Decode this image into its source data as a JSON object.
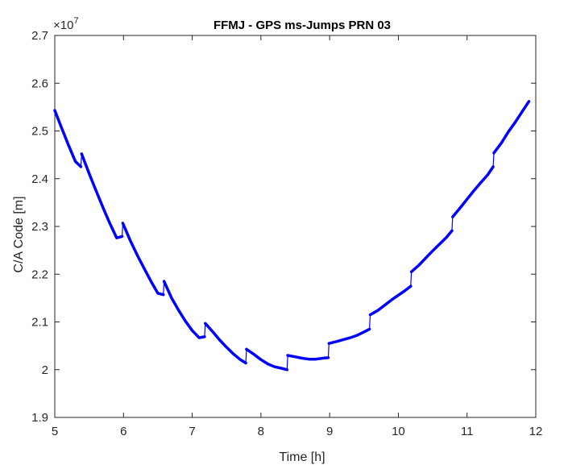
{
  "chart_data": {
    "type": "line",
    "title": "FFMJ - GPS ms-Jumps PRN 03",
    "xlabel": "Time [h]",
    "ylabel": "C/A Code [m]",
    "xlim": [
      5,
      12
    ],
    "ylim": [
      1.9,
      2.7
    ],
    "y_exponent_label": "×10",
    "y_exponent_power": "7",
    "x_ticks": [
      "5",
      "6",
      "7",
      "8",
      "9",
      "10",
      "11",
      "12"
    ],
    "y_ticks": [
      "1.9",
      "2",
      "2.1",
      "2.2",
      "2.3",
      "2.4",
      "2.5",
      "2.6",
      "2.7"
    ],
    "grid": false,
    "line_color": "#0000ff",
    "series": [
      {
        "segments": [
          [
            [
              5.0,
              2.543
            ],
            [
              5.1,
              2.506
            ],
            [
              5.2,
              2.47
            ],
            [
              5.3,
              2.436
            ],
            [
              5.38,
              2.425
            ]
          ],
          [
            [
              5.39,
              2.452
            ],
            [
              5.5,
              2.411
            ],
            [
              5.6,
              2.375
            ],
            [
              5.7,
              2.34
            ],
            [
              5.8,
              2.307
            ],
            [
              5.9,
              2.276
            ],
            [
              5.98,
              2.279
            ]
          ],
          [
            [
              5.99,
              2.307
            ],
            [
              6.1,
              2.27
            ],
            [
              6.2,
              2.24
            ],
            [
              6.3,
              2.212
            ],
            [
              6.4,
              2.185
            ],
            [
              6.5,
              2.16
            ],
            [
              6.58,
              2.157
            ]
          ],
          [
            [
              6.59,
              2.185
            ],
            [
              6.7,
              2.15
            ],
            [
              6.8,
              2.125
            ],
            [
              6.9,
              2.102
            ],
            [
              7.0,
              2.082
            ],
            [
              7.1,
              2.067
            ],
            [
              7.18,
              2.069
            ]
          ],
          [
            [
              7.19,
              2.097
            ],
            [
              7.3,
              2.079
            ],
            [
              7.4,
              2.062
            ],
            [
              7.5,
              2.047
            ],
            [
              7.6,
              2.033
            ],
            [
              7.7,
              2.021
            ],
            [
              7.78,
              2.014
            ]
          ],
          [
            [
              7.79,
              2.043
            ],
            [
              7.9,
              2.032
            ],
            [
              8.0,
              2.021
            ],
            [
              8.1,
              2.012
            ],
            [
              8.2,
              2.006
            ],
            [
              8.3,
              2.003
            ],
            [
              8.38,
              2.0
            ]
          ],
          [
            [
              8.39,
              2.03
            ],
            [
              8.5,
              2.027
            ],
            [
              8.6,
              2.024
            ],
            [
              8.7,
              2.022
            ],
            [
              8.8,
              2.022
            ],
            [
              8.9,
              2.024
            ],
            [
              8.98,
              2.025
            ]
          ],
          [
            [
              8.99,
              2.055
            ],
            [
              9.1,
              2.059
            ],
            [
              9.2,
              2.063
            ],
            [
              9.3,
              2.067
            ],
            [
              9.4,
              2.072
            ],
            [
              9.5,
              2.079
            ],
            [
              9.58,
              2.085
            ]
          ],
          [
            [
              9.59,
              2.115
            ],
            [
              9.7,
              2.124
            ],
            [
              9.8,
              2.135
            ],
            [
              9.9,
              2.146
            ],
            [
              10.0,
              2.156
            ],
            [
              10.1,
              2.166
            ],
            [
              10.18,
              2.175
            ]
          ],
          [
            [
              10.19,
              2.205
            ],
            [
              10.3,
              2.219
            ],
            [
              10.4,
              2.234
            ],
            [
              10.5,
              2.249
            ],
            [
              10.6,
              2.263
            ],
            [
              10.7,
              2.277
            ],
            [
              10.78,
              2.291
            ]
          ],
          [
            [
              10.79,
              2.32
            ],
            [
              10.9,
              2.339
            ],
            [
              11.0,
              2.357
            ],
            [
              11.1,
              2.375
            ],
            [
              11.2,
              2.392
            ],
            [
              11.3,
              2.408
            ],
            [
              11.38,
              2.425
            ]
          ],
          [
            [
              11.39,
              2.454
            ],
            [
              11.5,
              2.475
            ],
            [
              11.6,
              2.498
            ],
            [
              11.7,
              2.518
            ],
            [
              11.8,
              2.54
            ],
            [
              11.9,
              2.562
            ]
          ]
        ]
      }
    ]
  }
}
